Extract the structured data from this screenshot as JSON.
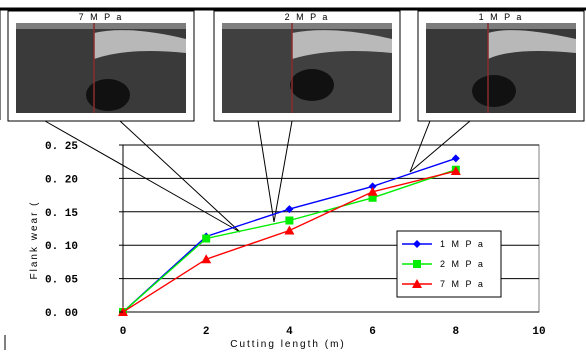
{
  "insets": [
    {
      "label": "7 M P a",
      "tint": "#3a3a3a"
    },
    {
      "label": "2 M P a",
      "tint": "#404040"
    },
    {
      "label": "1 M P a",
      "tint": "#383838"
    }
  ],
  "chart_data": {
    "type": "line",
    "title": "",
    "xlabel": "Cutting length (m)",
    "ylabel": "Flank wear (",
    "xlim": [
      0,
      10
    ],
    "ylim": [
      0,
      0.25
    ],
    "xticks": [
      0,
      2,
      4,
      6,
      8,
      10
    ],
    "xtick_labels": [
      "0",
      "2",
      "4",
      "6",
      "8",
      "10"
    ],
    "yticks": [
      0,
      0.05,
      0.1,
      0.15,
      0.2,
      0.25
    ],
    "ytick_labels": [
      "0. 00",
      "0. 05",
      "0. 10",
      "0. 15",
      "0. 20",
      "0. 25"
    ],
    "grid": "horizontal",
    "legend_position": "right",
    "series": [
      {
        "name": "1 M P a",
        "color": "#0000ff",
        "marker": "diamond",
        "x": [
          0,
          2,
          4,
          6,
          8
        ],
        "values": [
          0,
          0.113,
          0.154,
          0.188,
          0.23
        ]
      },
      {
        "name": "2 M P a",
        "color": "#00ee00",
        "marker": "square",
        "x": [
          0,
          2,
          4,
          6,
          8
        ],
        "values": [
          0,
          0.11,
          0.137,
          0.171,
          0.213
        ]
      },
      {
        "name": "7 M P a",
        "color": "#ff0000",
        "marker": "triangle",
        "x": [
          0,
          2,
          4,
          6,
          8
        ],
        "values": [
          0,
          0.079,
          0.122,
          0.18,
          0.211
        ]
      }
    ]
  }
}
